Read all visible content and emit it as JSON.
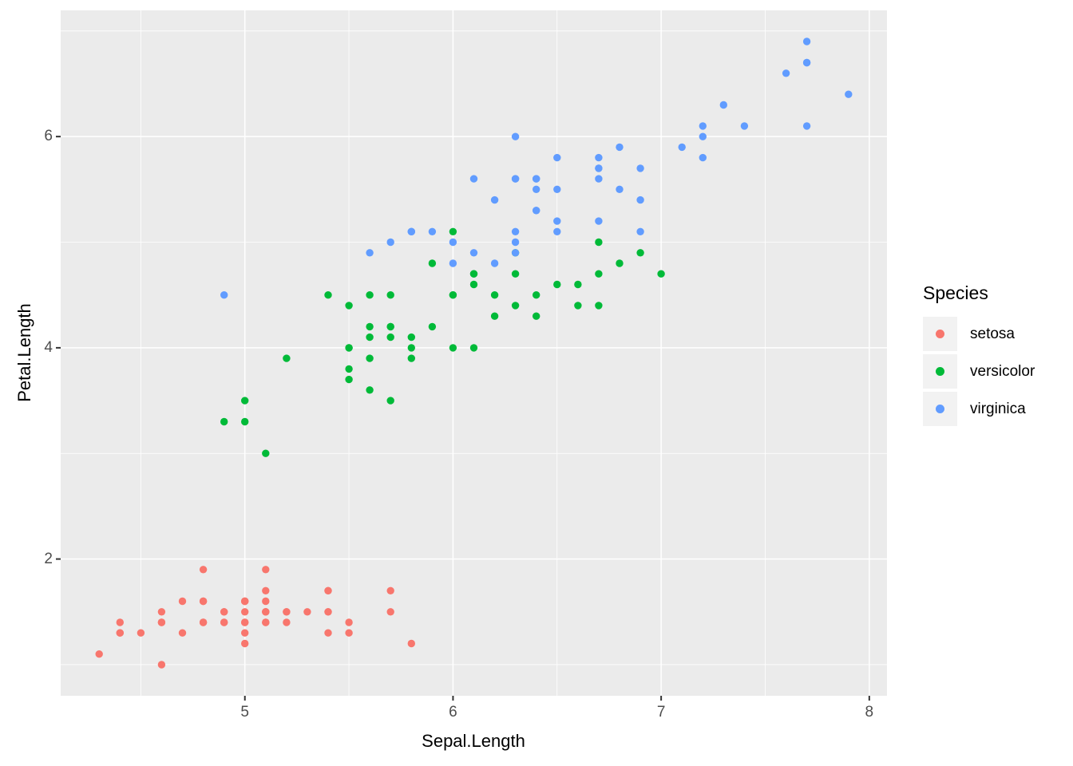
{
  "chart_data": {
    "type": "scatter",
    "title": "",
    "xlabel": "Sepal.Length",
    "ylabel": "Petal.Length",
    "xlim": [
      4.115,
      8.085
    ],
    "ylim": [
      0.705,
      7.195
    ],
    "x_ticks": [
      5,
      6,
      7,
      8
    ],
    "y_ticks": [
      2,
      4,
      6
    ],
    "x_minor_ticks": [
      4.5,
      5.5,
      6.5,
      7.5
    ],
    "y_minor_ticks": [
      1,
      3,
      5,
      7
    ],
    "grid": true,
    "legend_position": "right",
    "legend_title": "Species",
    "colors": {
      "panel_background": "#EBEBEB",
      "grid_line": "#FFFFFF",
      "tick_mark": "#333333",
      "tick_label": "#4D4D4D",
      "legend_key_background": "#F2F2F2"
    },
    "series": [
      {
        "name": "setosa",
        "color": "#F8766D",
        "x": [
          5.1,
          4.9,
          4.7,
          4.6,
          5.0,
          5.4,
          4.6,
          5.0,
          4.4,
          4.9,
          5.4,
          4.8,
          4.8,
          4.3,
          5.8,
          5.7,
          5.4,
          5.1,
          5.7,
          5.1,
          5.4,
          5.1,
          4.6,
          5.1,
          4.8,
          5.0,
          5.0,
          5.2,
          5.2,
          4.7,
          4.8,
          5.4,
          5.2,
          5.5,
          4.9,
          5.0,
          5.5,
          4.9,
          4.4,
          5.1,
          5.0,
          4.5,
          4.4,
          5.0,
          5.1,
          4.8,
          5.1,
          4.6,
          5.3,
          5.0
        ],
        "y": [
          1.4,
          1.4,
          1.3,
          1.5,
          1.4,
          1.7,
          1.4,
          1.5,
          1.4,
          1.5,
          1.5,
          1.6,
          1.4,
          1.1,
          1.2,
          1.5,
          1.3,
          1.4,
          1.7,
          1.5,
          1.7,
          1.5,
          1.0,
          1.7,
          1.9,
          1.6,
          1.6,
          1.5,
          1.4,
          1.6,
          1.6,
          1.5,
          1.5,
          1.4,
          1.5,
          1.2,
          1.3,
          1.4,
          1.3,
          1.5,
          1.3,
          1.3,
          1.3,
          1.6,
          1.9,
          1.4,
          1.6,
          1.4,
          1.5,
          1.4
        ]
      },
      {
        "name": "versicolor",
        "color": "#00BA38",
        "x": [
          7.0,
          6.4,
          6.9,
          5.5,
          6.5,
          5.7,
          6.3,
          4.9,
          6.6,
          5.2,
          5.0,
          5.9,
          6.0,
          6.1,
          5.6,
          6.7,
          5.6,
          5.8,
          6.2,
          5.6,
          5.9,
          6.1,
          6.3,
          6.1,
          6.4,
          6.6,
          6.8,
          6.7,
          6.0,
          5.7,
          5.5,
          5.5,
          5.8,
          6.0,
          5.4,
          6.0,
          6.7,
          6.3,
          5.6,
          5.5,
          5.5,
          6.1,
          5.8,
          5.0,
          5.6,
          5.7,
          5.7,
          6.2,
          5.1,
          5.7
        ],
        "y": [
          4.7,
          4.5,
          4.9,
          4.0,
          4.6,
          4.5,
          4.7,
          3.3,
          4.6,
          3.9,
          3.5,
          4.2,
          4.0,
          4.7,
          3.6,
          4.4,
          4.5,
          4.1,
          4.5,
          3.9,
          4.8,
          4.0,
          4.9,
          4.7,
          4.3,
          4.4,
          4.8,
          5.0,
          4.5,
          3.5,
          3.8,
          3.7,
          3.9,
          5.1,
          4.5,
          4.5,
          4.7,
          4.4,
          4.1,
          4.0,
          4.4,
          4.6,
          4.0,
          3.3,
          4.2,
          4.2,
          4.2,
          4.3,
          3.0,
          4.1
        ]
      },
      {
        "name": "virginica",
        "color": "#619CFF",
        "x": [
          6.3,
          5.8,
          7.1,
          6.3,
          6.5,
          7.6,
          4.9,
          7.3,
          6.7,
          7.2,
          6.5,
          6.4,
          6.8,
          5.7,
          5.8,
          6.4,
          6.5,
          7.7,
          7.7,
          6.0,
          6.9,
          5.6,
          7.7,
          6.3,
          6.7,
          7.2,
          6.2,
          6.1,
          6.4,
          7.2,
          7.4,
          7.9,
          6.4,
          6.3,
          6.1,
          7.7,
          6.3,
          6.4,
          6.0,
          6.9,
          6.7,
          6.9,
          5.8,
          6.8,
          6.7,
          6.7,
          6.3,
          6.5,
          6.2,
          5.9
        ],
        "y": [
          6.0,
          5.1,
          5.9,
          5.6,
          5.8,
          6.6,
          4.5,
          6.3,
          5.8,
          6.1,
          5.1,
          5.3,
          5.5,
          5.0,
          5.1,
          5.3,
          5.5,
          6.7,
          6.9,
          5.0,
          5.7,
          4.9,
          6.7,
          4.9,
          5.7,
          6.0,
          4.8,
          4.9,
          5.6,
          5.8,
          6.1,
          6.4,
          5.6,
          5.1,
          5.6,
          6.1,
          5.6,
          5.5,
          4.8,
          5.4,
          5.6,
          5.1,
          5.1,
          5.9,
          5.7,
          5.2,
          5.0,
          5.2,
          5.4,
          5.1
        ]
      }
    ]
  }
}
